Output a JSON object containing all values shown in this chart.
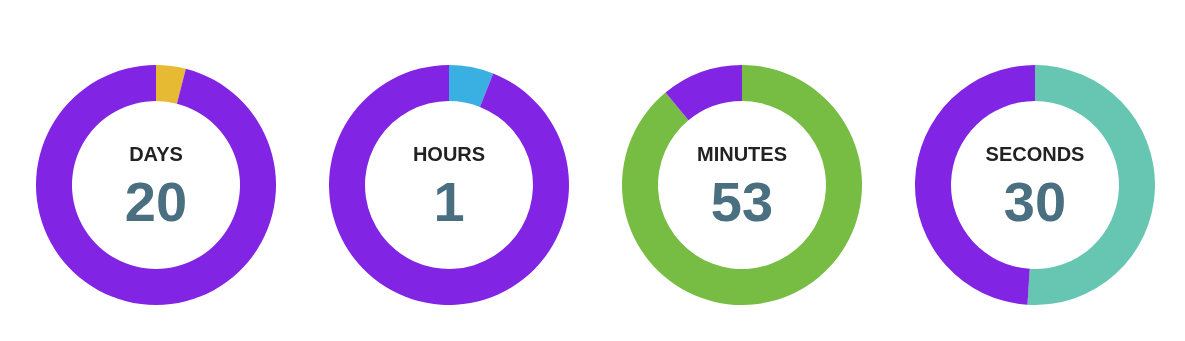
{
  "chart_data": [
    {
      "type": "donut",
      "title": "DAYS",
      "annotations": [
        "20"
      ],
      "categories": [
        null,
        null
      ],
      "values": [
        4,
        96
      ],
      "colors": [
        "#e6bb33",
        "#8224e3"
      ]
    },
    {
      "type": "donut",
      "title": "HOURS",
      "annotations": [
        "1"
      ],
      "categories": [
        null,
        null
      ],
      "values": [
        6,
        94
      ],
      "colors": [
        "#3ab0e2",
        "#8224e3"
      ]
    },
    {
      "type": "donut",
      "title": "MINUTES",
      "annotations": [
        "53"
      ],
      "categories": [
        null,
        null
      ],
      "values": [
        89,
        11
      ],
      "colors": [
        "#78bd43",
        "#8224e3"
      ]
    },
    {
      "type": "donut",
      "title": "SECONDS",
      "annotations": [
        "30"
      ],
      "categories": [
        null,
        null
      ],
      "values": [
        51,
        49
      ],
      "colors": [
        "#66c6b1",
        "#8224e3"
      ]
    }
  ]
}
